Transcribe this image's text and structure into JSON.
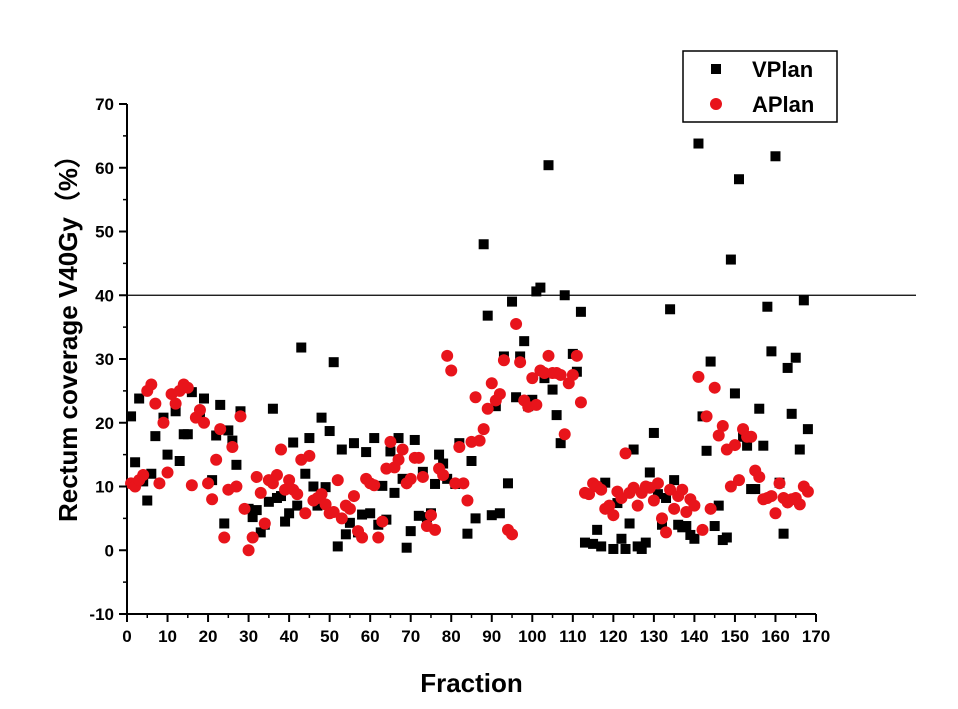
{
  "chart_data": {
    "type": "scatter",
    "xlabel": "Fraction",
    "ylabel": "Rectum coverage V40Gy（%）",
    "xlim": [
      0,
      170
    ],
    "ylim": [
      -10,
      70
    ],
    "xticks": [
      0,
      10,
      20,
      30,
      40,
      50,
      60,
      70,
      80,
      90,
      100,
      110,
      120,
      130,
      140,
      150,
      160,
      170
    ],
    "yticks": [
      -10,
      0,
      10,
      20,
      30,
      40,
      50,
      60,
      70
    ],
    "reference_line": 40,
    "legend_position": "top-right",
    "grid": false,
    "series": [
      {
        "name": "VPlan",
        "marker": "square",
        "color": "#000000",
        "points": [
          [
            1,
            21
          ],
          [
            2,
            13.8
          ],
          [
            3,
            23.8
          ],
          [
            4,
            10.8
          ],
          [
            5,
            7.8
          ],
          [
            6,
            12
          ],
          [
            7,
            17.9
          ],
          [
            9,
            20.8
          ],
          [
            10,
            15
          ],
          [
            12,
            21.8
          ],
          [
            13,
            14
          ],
          [
            14,
            18.2
          ],
          [
            15,
            18.2
          ],
          [
            16,
            24.8
          ],
          [
            18,
            20.8
          ],
          [
            19,
            23.8
          ],
          [
            21,
            11
          ],
          [
            22,
            18
          ],
          [
            23,
            22.8
          ],
          [
            24,
            4.2
          ],
          [
            25,
            18.8
          ],
          [
            26,
            17.2
          ],
          [
            27,
            13.4
          ],
          [
            28,
            21.8
          ],
          [
            30,
            6.5
          ],
          [
            31,
            5.2
          ],
          [
            32,
            6.3
          ],
          [
            33,
            2.8
          ],
          [
            34,
            4
          ],
          [
            35,
            7.6
          ],
          [
            36,
            22.2
          ],
          [
            37,
            8.2
          ],
          [
            38,
            8.5
          ],
          [
            39,
            4.5
          ],
          [
            40,
            5.8
          ],
          [
            41,
            16.9
          ],
          [
            42,
            7
          ],
          [
            43,
            31.8
          ],
          [
            44,
            12
          ],
          [
            45,
            17.6
          ],
          [
            46,
            10
          ],
          [
            47,
            7
          ],
          [
            48,
            20.8
          ],
          [
            49,
            9.9
          ],
          [
            50,
            18.7
          ],
          [
            51,
            29.5
          ],
          [
            52,
            0.6
          ],
          [
            53,
            15.8
          ],
          [
            54,
            2.5
          ],
          [
            55,
            4.3
          ],
          [
            56,
            16.8
          ],
          [
            57,
            2.8
          ],
          [
            58,
            5.6
          ],
          [
            59,
            15.4
          ],
          [
            60,
            5.8
          ],
          [
            61,
            17.6
          ],
          [
            62,
            4
          ],
          [
            63,
            10.1
          ],
          [
            64,
            4.8
          ],
          [
            65,
            15.5
          ],
          [
            66,
            9
          ],
          [
            67,
            17.6
          ],
          [
            68,
            11.2
          ],
          [
            69,
            0.4
          ],
          [
            70,
            3
          ],
          [
            71,
            17.3
          ],
          [
            72,
            5.4
          ],
          [
            73,
            12.3
          ],
          [
            74,
            5.2
          ],
          [
            75,
            5.8
          ],
          [
            76,
            10.4
          ],
          [
            77,
            15
          ],
          [
            78,
            13.6
          ],
          [
            79,
            11.2
          ],
          [
            81,
            10.4
          ],
          [
            82,
            16.8
          ],
          [
            84,
            2.6
          ],
          [
            85,
            14
          ],
          [
            86,
            5
          ],
          [
            88,
            48
          ],
          [
            89,
            36.8
          ],
          [
            90,
            5.5
          ],
          [
            91,
            22.6
          ],
          [
            92,
            5.8
          ],
          [
            93,
            30.4
          ],
          [
            94,
            10.5
          ],
          [
            95,
            39
          ],
          [
            96,
            24
          ],
          [
            97,
            30.4
          ],
          [
            98,
            32.8
          ],
          [
            99,
            22.6
          ],
          [
            100,
            23.6
          ],
          [
            101,
            40.6
          ],
          [
            102,
            41.2
          ],
          [
            103,
            27
          ],
          [
            104,
            60.4
          ],
          [
            105,
            25.2
          ],
          [
            106,
            21.2
          ],
          [
            107,
            16.8
          ],
          [
            108,
            40
          ],
          [
            110,
            30.8
          ],
          [
            111,
            28
          ],
          [
            112,
            37.4
          ],
          [
            113,
            1.2
          ],
          [
            115,
            1
          ],
          [
            116,
            3.2
          ],
          [
            117,
            0.6
          ],
          [
            118,
            10.6
          ],
          [
            120,
            0.2
          ],
          [
            121,
            7.4
          ],
          [
            122,
            1.8
          ],
          [
            123,
            0.2
          ],
          [
            124,
            4.2
          ],
          [
            125,
            15.8
          ],
          [
            126,
            0.6
          ],
          [
            127,
            0.2
          ],
          [
            128,
            1.2
          ],
          [
            129,
            12.2
          ],
          [
            130,
            18.4
          ],
          [
            131,
            8.8
          ],
          [
            132,
            4
          ],
          [
            133,
            8.2
          ],
          [
            134,
            37.8
          ],
          [
            135,
            11
          ],
          [
            136,
            4
          ],
          [
            137,
            3.6
          ],
          [
            138,
            3.8
          ],
          [
            139,
            2.4
          ],
          [
            140,
            1.8
          ],
          [
            141,
            63.8
          ],
          [
            142,
            21
          ],
          [
            143,
            15.6
          ],
          [
            144,
            29.6
          ],
          [
            145,
            3.8
          ],
          [
            146,
            7
          ],
          [
            147,
            1.6
          ],
          [
            148,
            2
          ],
          [
            149,
            45.6
          ],
          [
            150,
            24.6
          ],
          [
            151,
            58.2
          ],
          [
            152,
            17.8
          ],
          [
            153,
            16.4
          ],
          [
            154,
            9.6
          ],
          [
            155,
            9.6
          ],
          [
            156,
            22.2
          ],
          [
            157,
            16.4
          ],
          [
            158,
            38.2
          ],
          [
            159,
            31.2
          ],
          [
            160,
            61.8
          ],
          [
            161,
            10.6
          ],
          [
            162,
            2.6
          ],
          [
            163,
            28.6
          ],
          [
            164,
            21.4
          ],
          [
            165,
            30.2
          ],
          [
            166,
            15.8
          ],
          [
            167,
            39.2
          ],
          [
            168,
            19
          ]
        ]
      },
      {
        "name": "APlan",
        "marker": "circle",
        "color": "#e8141b",
        "points": [
          [
            1,
            10.5
          ],
          [
            2,
            10
          ],
          [
            3,
            11
          ],
          [
            4,
            11.8
          ],
          [
            5,
            25
          ],
          [
            6,
            26
          ],
          [
            7,
            23
          ],
          [
            8,
            10.5
          ],
          [
            9,
            20
          ],
          [
            10,
            12.2
          ],
          [
            11,
            24.5
          ],
          [
            12,
            23
          ],
          [
            13,
            25
          ],
          [
            14,
            26
          ],
          [
            15,
            25.5
          ],
          [
            16,
            10.2
          ],
          [
            17,
            20.8
          ],
          [
            18,
            22
          ],
          [
            19,
            20
          ],
          [
            20,
            10.5
          ],
          [
            21,
            8
          ],
          [
            22,
            14.2
          ],
          [
            23,
            19
          ],
          [
            24,
            2
          ],
          [
            25,
            9.5
          ],
          [
            26,
            16.2
          ],
          [
            27,
            10
          ],
          [
            28,
            21
          ],
          [
            29,
            6.5
          ],
          [
            30,
            0
          ],
          [
            31,
            2
          ],
          [
            32,
            11.5
          ],
          [
            33,
            9
          ],
          [
            34,
            4.2
          ],
          [
            35,
            11
          ],
          [
            36,
            10.5
          ],
          [
            37,
            11.8
          ],
          [
            38,
            15.8
          ],
          [
            39,
            9.5
          ],
          [
            40,
            11
          ],
          [
            41,
            9.5
          ],
          [
            42,
            8.8
          ],
          [
            43,
            14.2
          ],
          [
            44,
            5.8
          ],
          [
            45,
            14.8
          ],
          [
            46,
            7.8
          ],
          [
            47,
            8.2
          ],
          [
            48,
            8.8
          ],
          [
            49,
            7.2
          ],
          [
            50,
            5.8
          ],
          [
            51,
            6
          ],
          [
            52,
            11
          ],
          [
            53,
            5
          ],
          [
            54,
            7
          ],
          [
            55,
            6.5
          ],
          [
            56,
            8.5
          ],
          [
            57,
            3
          ],
          [
            58,
            2
          ],
          [
            59,
            11.2
          ],
          [
            60,
            10.5
          ],
          [
            61,
            10.2
          ],
          [
            62,
            2
          ],
          [
            63,
            4.5
          ],
          [
            64,
            12.8
          ],
          [
            65,
            17
          ],
          [
            66,
            13
          ],
          [
            67,
            14.2
          ],
          [
            68,
            15.8
          ],
          [
            69,
            10.5
          ],
          [
            70,
            11.2
          ],
          [
            71,
            14.5
          ],
          [
            72,
            14.5
          ],
          [
            73,
            11.5
          ],
          [
            74,
            3.8
          ],
          [
            75,
            5.5
          ],
          [
            76,
            3.2
          ],
          [
            77,
            12.8
          ],
          [
            78,
            11.8
          ],
          [
            79,
            30.5
          ],
          [
            80,
            28.2
          ],
          [
            81,
            10.5
          ],
          [
            82,
            16.2
          ],
          [
            83,
            10.5
          ],
          [
            84,
            7.8
          ],
          [
            85,
            17
          ],
          [
            86,
            24
          ],
          [
            87,
            17.2
          ],
          [
            88,
            19
          ],
          [
            89,
            22.2
          ],
          [
            90,
            26.2
          ],
          [
            91,
            23.5
          ],
          [
            92,
            24.5
          ],
          [
            93,
            29.8
          ],
          [
            94,
            3.2
          ],
          [
            95,
            2.5
          ],
          [
            96,
            35.5
          ],
          [
            97,
            29.5
          ],
          [
            98,
            23.5
          ],
          [
            99,
            22.5
          ],
          [
            100,
            27
          ],
          [
            101,
            22.8
          ],
          [
            102,
            28.2
          ],
          [
            103,
            27.8
          ],
          [
            104,
            30.5
          ],
          [
            105,
            27.8
          ],
          [
            106,
            27.8
          ],
          [
            107,
            27.5
          ],
          [
            108,
            18.2
          ],
          [
            109,
            26.2
          ],
          [
            110,
            27.5
          ],
          [
            111,
            30.5
          ],
          [
            112,
            23.2
          ],
          [
            113,
            9
          ],
          [
            114,
            8.8
          ],
          [
            115,
            10.5
          ],
          [
            116,
            10
          ],
          [
            117,
            9.5
          ],
          [
            118,
            6.5
          ],
          [
            119,
            7
          ],
          [
            120,
            5.5
          ],
          [
            121,
            9.2
          ],
          [
            122,
            8.2
          ],
          [
            123,
            15.2
          ],
          [
            124,
            9
          ],
          [
            125,
            9.8
          ],
          [
            126,
            7
          ],
          [
            127,
            9
          ],
          [
            128,
            10
          ],
          [
            129,
            9.8
          ],
          [
            130,
            7.8
          ],
          [
            131,
            10.5
          ],
          [
            132,
            5
          ],
          [
            133,
            2.8
          ],
          [
            134,
            9.5
          ],
          [
            135,
            6.5
          ],
          [
            136,
            8.5
          ],
          [
            137,
            9.5
          ],
          [
            138,
            6
          ],
          [
            139,
            8
          ],
          [
            140,
            7
          ],
          [
            141,
            27.2
          ],
          [
            142,
            3.2
          ],
          [
            143,
            21
          ],
          [
            144,
            6.5
          ],
          [
            145,
            25.5
          ],
          [
            146,
            18
          ],
          [
            147,
            19.5
          ],
          [
            148,
            15.8
          ],
          [
            149,
            10
          ],
          [
            150,
            16.5
          ],
          [
            151,
            11
          ],
          [
            152,
            19
          ],
          [
            153,
            17.8
          ],
          [
            154,
            17.8
          ],
          [
            155,
            12.5
          ],
          [
            156,
            11.5
          ],
          [
            157,
            8
          ],
          [
            158,
            8.2
          ],
          [
            159,
            8.5
          ],
          [
            160,
            5.8
          ],
          [
            161,
            10.5
          ],
          [
            162,
            8.2
          ],
          [
            163,
            7.5
          ],
          [
            164,
            8
          ],
          [
            165,
            8.2
          ],
          [
            166,
            7.2
          ],
          [
            167,
            10
          ],
          [
            168,
            9.2
          ]
        ]
      }
    ]
  }
}
